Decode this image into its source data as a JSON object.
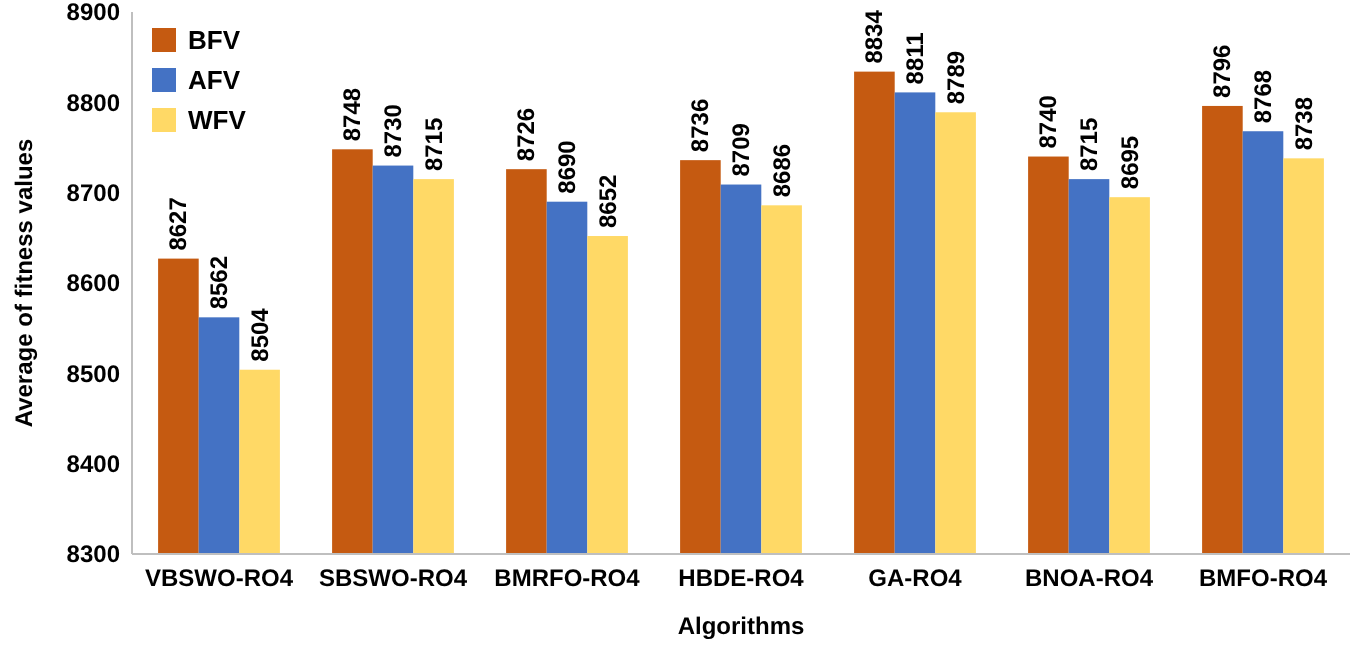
{
  "chart_data": {
    "type": "bar",
    "xlabel": "Algorithms",
    "ylabel": "Average of fitness values",
    "categories": [
      "VBSWO-RO4",
      "SBSWO-RO4",
      "BMRFO-RO4",
      "HBDE-RO4",
      "GA-RO4",
      "BNOA-RO4",
      "BMFO-RO4"
    ],
    "series": [
      {
        "name": "BFV",
        "color": "#c55a11",
        "values": [
          8627,
          8748,
          8726,
          8736,
          8834,
          8740,
          8796
        ]
      },
      {
        "name": "AFV",
        "color": "#4472c4",
        "values": [
          8562,
          8730,
          8690,
          8709,
          8811,
          8715,
          8768
        ]
      },
      {
        "name": "WFV",
        "color": "#ffd966",
        "values": [
          8504,
          8715,
          8652,
          8686,
          8789,
          8695,
          8738
        ]
      }
    ],
    "ylim": [
      8300,
      8900
    ],
    "yticks": [
      8300,
      8400,
      8500,
      8600,
      8700,
      8800,
      8900
    ],
    "data_labels": true,
    "legend": "top left"
  }
}
